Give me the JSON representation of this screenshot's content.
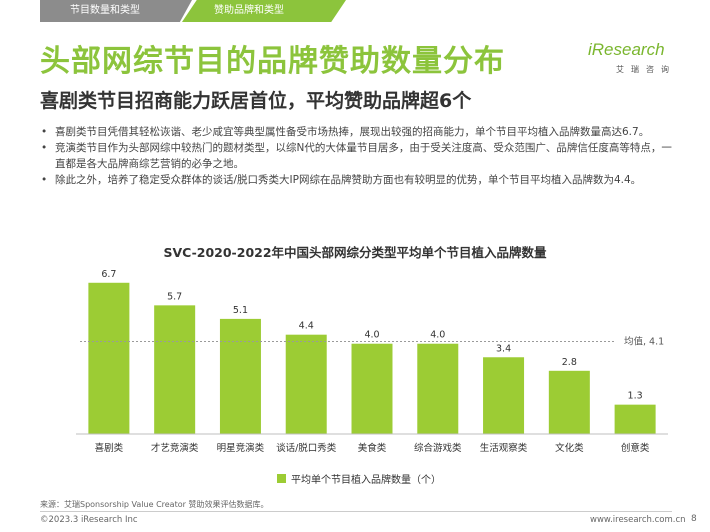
{
  "tabs": [
    {
      "label": "节目数量和类型"
    },
    {
      "label": "赞助品牌和类型"
    }
  ],
  "title": "头部网综节目的品牌赞助数量分布",
  "subtitle": "喜剧类节目招商能力跃居首位，平均赞助品牌超6个",
  "logo": {
    "word": "iResearch",
    "sub": "艾瑞咨询"
  },
  "bullets": [
    "喜剧类节目凭借其轻松诙谐、老少咸宜等典型属性备受市场热捧，展现出较强的招商能力，单个节目平均植入品牌数量高达6.7。",
    "竞演类节目作为头部网综中较热门的题材类型，以综N代的大体量节目居多，由于受关注度高、受众范围广、品牌信任度高等特点，一直都是各大品牌商综艺营销的必争之地。",
    "除此之外，培养了稳定受众群体的谈话/脱口秀类大IP网综在品牌赞助方面也有较明显的优势，单个节目平均植入品牌数为4.4。"
  ],
  "bullet_symbol": "•",
  "chart_data": {
    "type": "bar",
    "title": "SVC-2020-2022年中国头部网综分类型平均单个节目植入品牌数量",
    "categories": [
      "喜剧类",
      "才艺竞演类",
      "明星竞演类",
      "谈话/脱口秀类",
      "美食类",
      "综合游戏类",
      "生活观察类",
      "文化类",
      "创意类"
    ],
    "series": [
      {
        "name": "平均单个节目植入品牌数量（个）",
        "values": [
          6.7,
          5.7,
          5.1,
          4.4,
          4.0,
          4.0,
          3.4,
          2.8,
          1.3
        ],
        "color": "#9ccc34"
      }
    ],
    "value_labels": [
      "6.7",
      "5.7",
      "5.1",
      "4.4",
      "4.0",
      "4.0",
      "3.4",
      "2.8",
      "1.3"
    ],
    "average": {
      "value": 4.1,
      "label": "均值, 4.1"
    },
    "ylim": [
      0,
      7
    ],
    "grid": false,
    "legend": "bottom"
  },
  "source": "来源：艾瑞Sponsorship Value Creator 赞助效果评估数据库。",
  "copyright": "©2023.3 iResearch Inc",
  "website": "www.iresearch.com.cn",
  "page_number": "8",
  "colors": {
    "accent": "#8cc43c",
    "bar": "#9ccc34",
    "tab_inactive": "#8c8c8c"
  }
}
